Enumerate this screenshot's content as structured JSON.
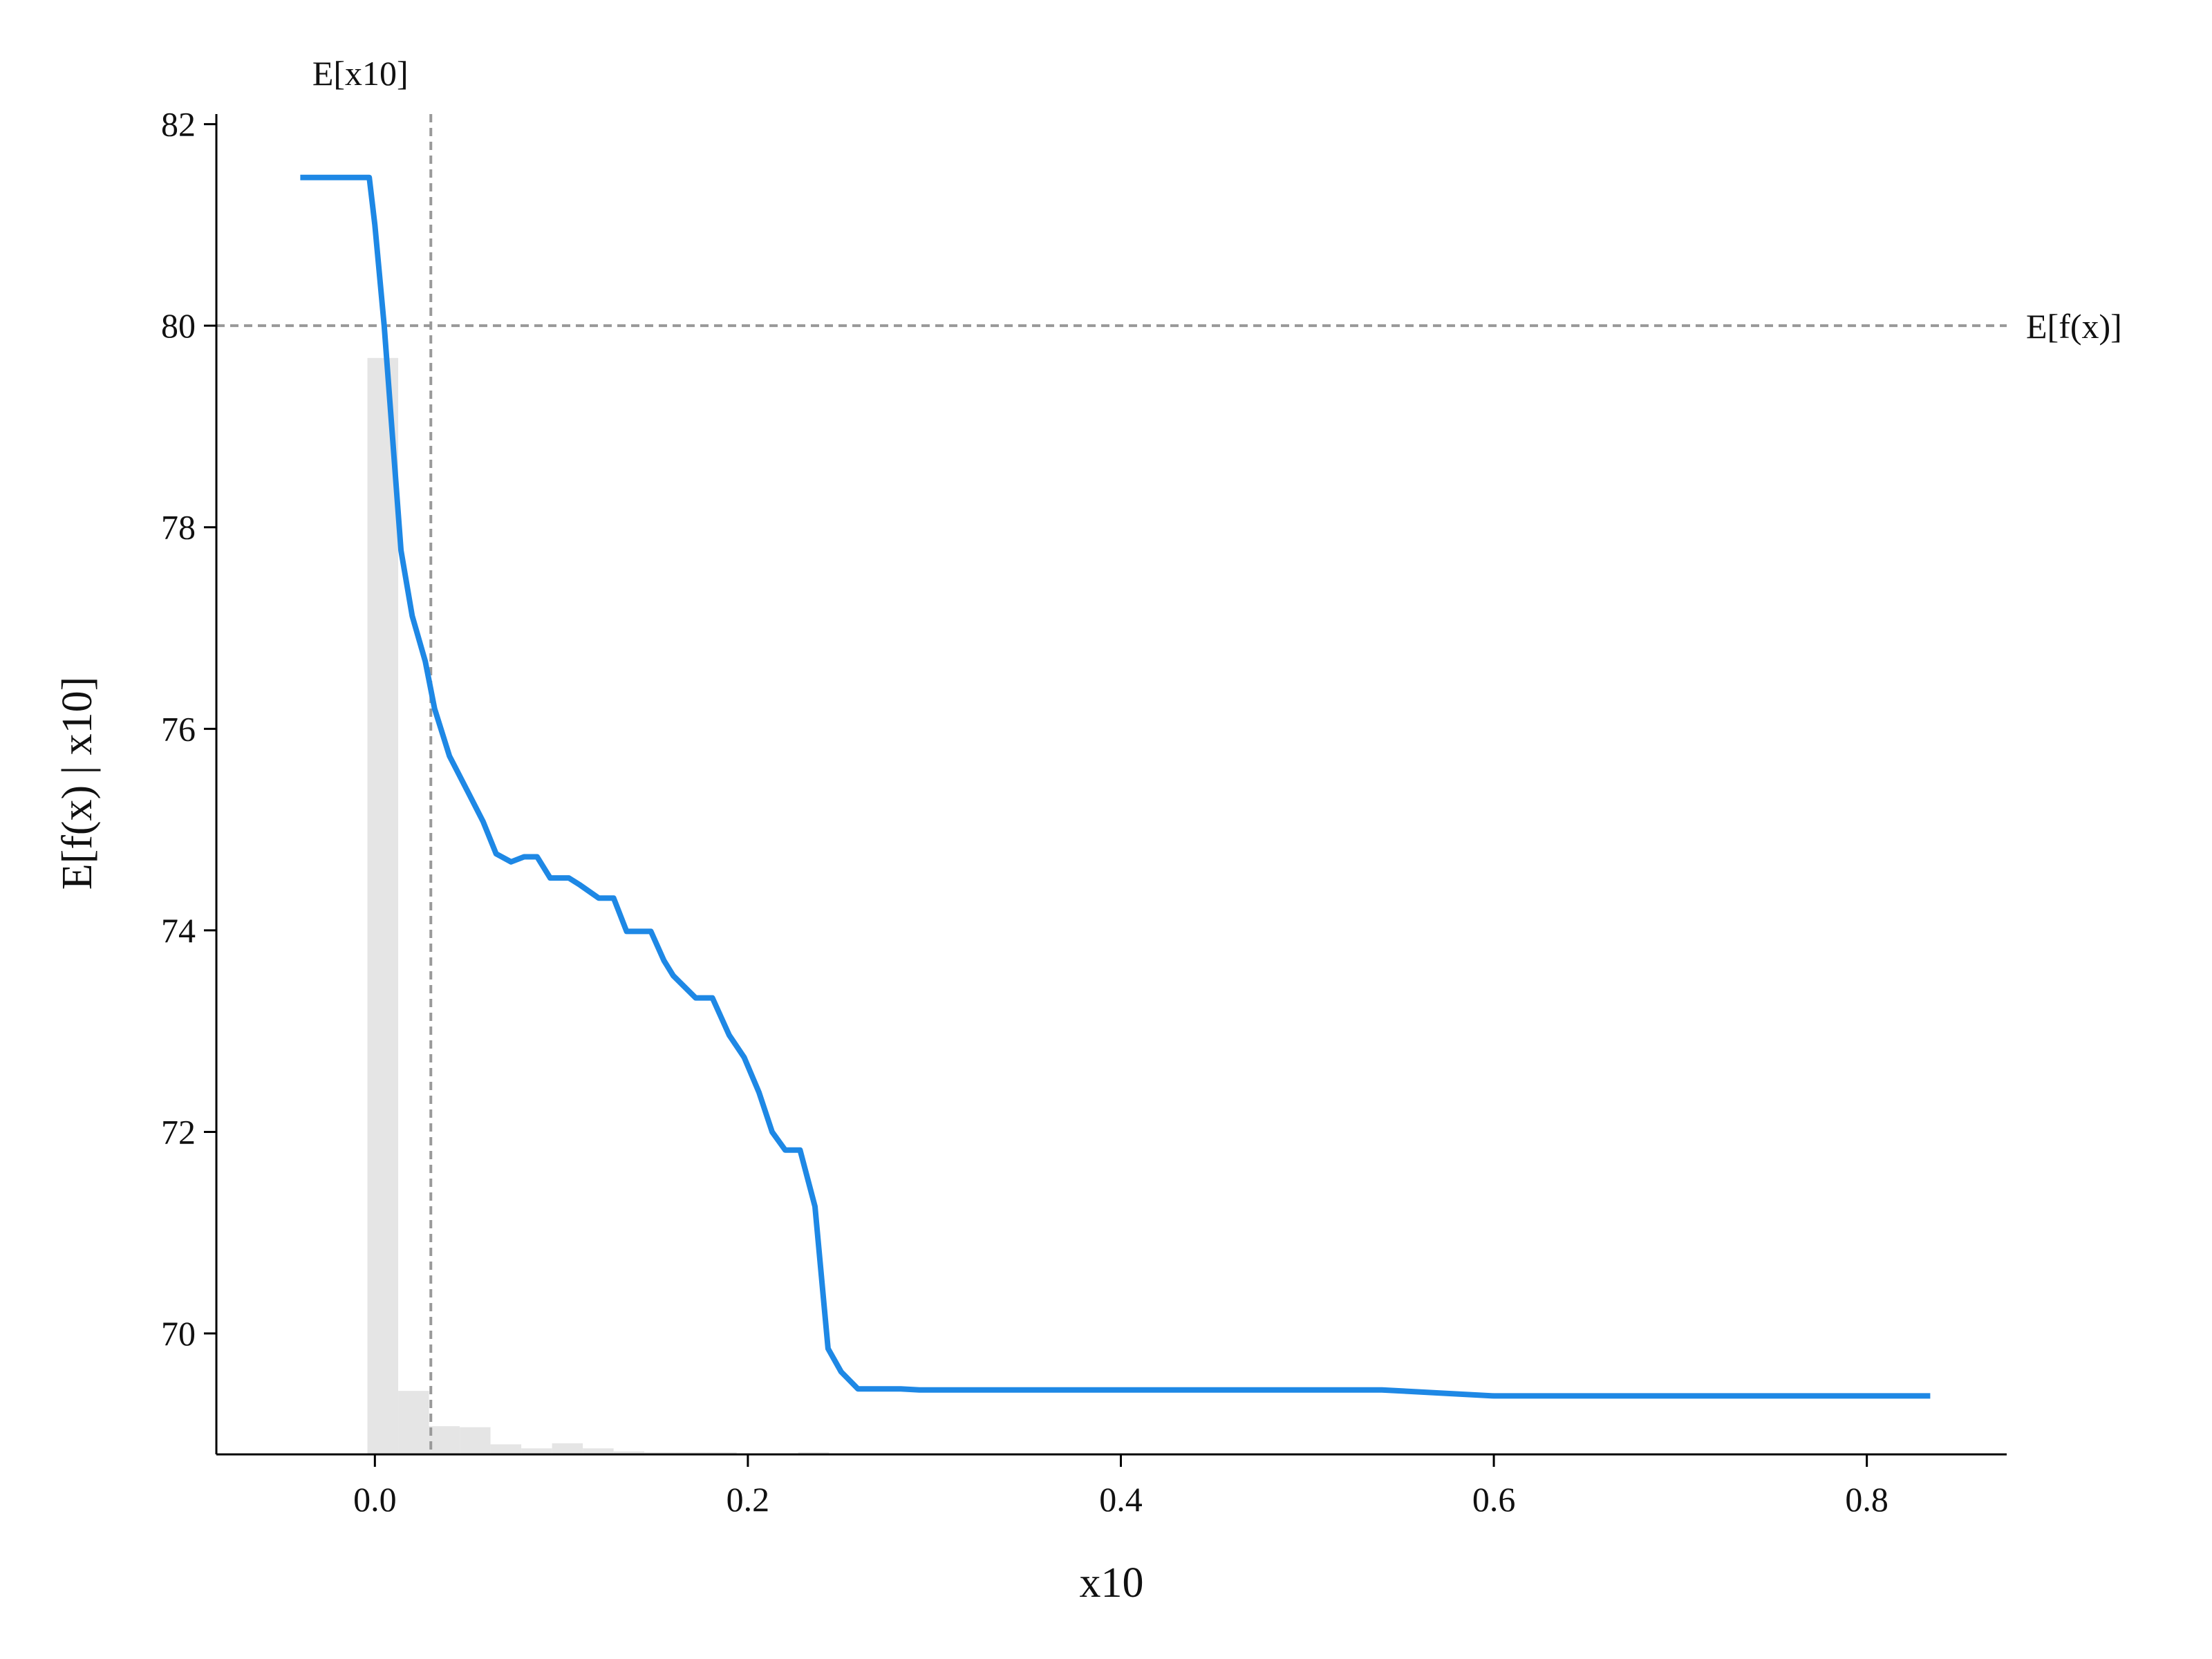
{
  "chart_data": {
    "type": "line",
    "xlabel": "x10",
    "ylabel": "E[f(x) | x10]",
    "xlim": [
      -0.085,
      0.875
    ],
    "ylim": [
      68.8,
      82.1
    ],
    "x_ticks": [
      0.0,
      0.2,
      0.4,
      0.6,
      0.8
    ],
    "x_tick_labels": [
      "0.0",
      "0.2",
      "0.4",
      "0.6",
      "0.8"
    ],
    "y_ticks": [
      70,
      72,
      74,
      76,
      78,
      80,
      82
    ],
    "y_tick_labels": [
      "70",
      "72",
      "74",
      "76",
      "78",
      "80",
      "82"
    ],
    "grid": false,
    "reference_lines": {
      "expected_x": {
        "label": "E[x10]",
        "value": 0.03
      },
      "expected_fx": {
        "label": "E[f(x)]",
        "value": 80.0
      }
    },
    "colors": {
      "line": "#1e88e5",
      "histogram": "#e5e5e5",
      "reference": "#999999"
    },
    "histogram": {
      "bin_width": 0.0165,
      "bins": [
        {
          "x": -0.004,
          "value": 79.68
        },
        {
          "x": 0.0125,
          "value": 69.43
        },
        {
          "x": 0.029,
          "value": 69.08
        },
        {
          "x": 0.0455,
          "value": 69.07
        },
        {
          "x": 0.062,
          "value": 68.9
        },
        {
          "x": 0.0785,
          "value": 68.86
        },
        {
          "x": 0.095,
          "value": 68.91
        },
        {
          "x": 0.1115,
          "value": 68.86
        },
        {
          "x": 0.128,
          "value": 68.83
        },
        {
          "x": 0.1445,
          "value": 68.82
        },
        {
          "x": 0.161,
          "value": 68.82
        },
        {
          "x": 0.1775,
          "value": 68.82
        },
        {
          "x": 0.194,
          "value": 68.81
        },
        {
          "x": 0.2105,
          "value": 68.81
        },
        {
          "x": 0.227,
          "value": 68.82
        },
        {
          "x": 0.2435,
          "value": 68.81
        },
        {
          "x": 0.26,
          "value": 68.81
        }
      ]
    },
    "series": [
      {
        "x": [
          -0.04,
          -0.003,
          0.0,
          0.005,
          0.014,
          0.02,
          0.027,
          0.032,
          0.04,
          0.05,
          0.058,
          0.065,
          0.073,
          0.08,
          0.087,
          0.094,
          0.104,
          0.11,
          0.12,
          0.128,
          0.135,
          0.143,
          0.148,
          0.155,
          0.16,
          0.172,
          0.181,
          0.19,
          0.198,
          0.206,
          0.213,
          0.22,
          0.228,
          0.236,
          0.243,
          0.25,
          0.259,
          0.264,
          0.27,
          0.276,
          0.282,
          0.292,
          0.3,
          0.4,
          0.5,
          0.54,
          0.6,
          0.64,
          0.65,
          0.7,
          0.8,
          0.834
        ],
        "values": [
          81.47,
          81.47,
          81.0,
          80.0,
          77.77,
          77.12,
          76.67,
          76.2,
          75.73,
          75.37,
          75.08,
          74.76,
          74.68,
          74.73,
          74.73,
          74.52,
          74.52,
          74.45,
          74.32,
          74.32,
          73.99,
          73.99,
          73.99,
          73.7,
          73.55,
          73.33,
          73.33,
          72.96,
          72.74,
          72.39,
          72.0,
          71.82,
          71.82,
          71.26,
          69.85,
          69.62,
          69.45,
          69.45,
          69.45,
          69.45,
          69.45,
          69.44,
          69.44,
          69.44,
          69.44,
          69.44,
          69.38,
          69.38,
          69.38,
          69.38,
          69.38,
          69.38
        ]
      }
    ]
  }
}
